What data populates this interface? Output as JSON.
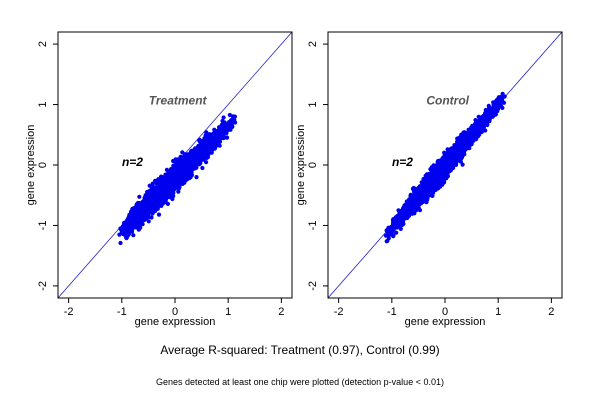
{
  "chart_data": [
    {
      "type": "scatter",
      "title": "",
      "annotation": "Treatment",
      "n_label": "n=2",
      "xlabel": "gene expression",
      "ylabel": "gene expression",
      "xlim": [
        -2.2,
        2.2
      ],
      "ylim": [
        -2.2,
        2.2
      ],
      "xticks": [
        -2,
        -1,
        0,
        1,
        2
      ],
      "yticks": [
        -2,
        -1,
        0,
        1,
        2
      ],
      "tick_labels": [
        "-2",
        "-1",
        "0",
        "1",
        "2"
      ],
      "reference_line": {
        "slope": 1,
        "intercept": 0
      },
      "point_color": "#0000ee",
      "line_color": "#2222cc",
      "annotation_color": "#555555",
      "cloud": {
        "x_range": [
          -1.05,
          1.15
        ],
        "x_mode": -0.45,
        "y_intercept": -0.22,
        "slope": 0.88,
        "spread": 0.1
      }
    },
    {
      "type": "scatter",
      "title": "",
      "annotation": "Control",
      "n_label": "n=2",
      "xlabel": "gene expression",
      "ylabel": "gene expression",
      "xlim": [
        -2.2,
        2.2
      ],
      "ylim": [
        -2.2,
        2.2
      ],
      "xticks": [
        -2,
        -1,
        0,
        1,
        2
      ],
      "yticks": [
        -2,
        -1,
        0,
        1,
        2
      ],
      "tick_labels": [
        "-2",
        "-1",
        "0",
        "1",
        "2"
      ],
      "reference_line": {
        "slope": 1,
        "intercept": 0
      },
      "point_color": "#0000ee",
      "line_color": "#2222cc",
      "annotation_color": "#555555",
      "cloud": {
        "x_range": [
          -1.15,
          1.15
        ],
        "x_mode": -0.25,
        "y_intercept": -0.02,
        "slope": 1.02,
        "spread": 0.08
      }
    }
  ],
  "caption": "Average R-squared: Treatment (0.97), Control (0.99)",
  "footnote": "Genes detected at least one chip were plotted (detection p-value < 0.01)"
}
